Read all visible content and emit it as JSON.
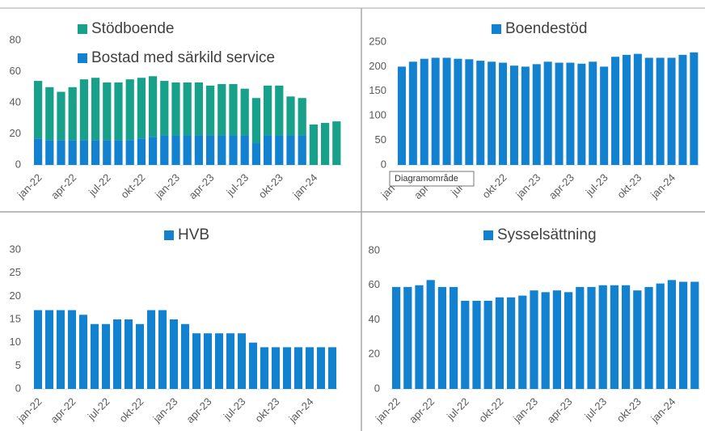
{
  "chart_data": [
    {
      "type": "bar",
      "stacked": true,
      "categories": [
        "jan-22",
        null,
        null,
        "apr-22",
        null,
        null,
        "jul-22",
        null,
        null,
        "okt-22",
        null,
        null,
        "jan-23",
        null,
        null,
        "apr-23",
        null,
        null,
        "jul-23",
        null,
        null,
        "okt-23",
        null,
        null,
        "jan-24",
        null,
        null
      ],
      "series": [
        {
          "name": "Bostad med särkild service",
          "color": "#1181d0",
          "values": [
            17,
            16,
            16,
            16,
            16,
            16,
            16,
            16,
            16,
            17,
            18,
            19,
            19,
            19,
            19,
            19,
            19,
            19,
            19,
            14,
            19,
            19,
            19,
            19,
            null,
            null,
            null
          ]
        },
        {
          "name": "Stödboende",
          "color": "#17a18a",
          "values": [
            37,
            34,
            31,
            34,
            39,
            40,
            37,
            37,
            39,
            39,
            39,
            35,
            34,
            34,
            34,
            32,
            33,
            33,
            30,
            29,
            32,
            32,
            25,
            24,
            26,
            27,
            28
          ]
        }
      ],
      "ylim": [
        0,
        80
      ],
      "yticks": [
        0,
        20,
        40,
        60,
        80
      ]
    },
    {
      "type": "bar",
      "tooltip": "Diagramområde",
      "categories": [
        "jan-22",
        null,
        null,
        "apr-22",
        null,
        null,
        "jul-22",
        null,
        null,
        "okt-22",
        null,
        null,
        "jan-23",
        null,
        null,
        "apr-23",
        null,
        null,
        "jul-23",
        null,
        null,
        "okt-23",
        null,
        null,
        "jan-24",
        null,
        null
      ],
      "series": [
        {
          "name": "Boendestöd",
          "color": "#1181d0",
          "values": [
            200,
            210,
            216,
            218,
            218,
            216,
            215,
            212,
            210,
            208,
            202,
            200,
            205,
            210,
            208,
            208,
            206,
            210,
            200,
            220,
            224,
            226,
            218,
            218,
            218,
            224,
            229
          ]
        }
      ],
      "ylim": [
        0,
        250
      ],
      "yticks": [
        0,
        50,
        100,
        150,
        200,
        250
      ]
    },
    {
      "type": "bar",
      "categories": [
        "jan-22",
        null,
        null,
        "apr-22",
        null,
        null,
        "jul-22",
        null,
        null,
        "okt-22",
        null,
        null,
        "jan-23",
        null,
        null,
        "apr-23",
        null,
        null,
        "jul-23",
        null,
        null,
        "okt-23",
        null,
        null,
        "jan-24",
        null,
        null
      ],
      "series": [
        {
          "name": "HVB",
          "color": "#1181d0",
          "values": [
            17,
            17,
            17,
            17,
            16,
            14,
            14,
            15,
            15,
            14,
            17,
            17,
            15,
            14,
            12,
            12,
            12,
            12,
            12,
            10,
            9,
            9,
            9,
            9,
            9,
            9,
            9
          ]
        }
      ],
      "ylim": [
        0,
        30
      ],
      "yticks": [
        0,
        5,
        10,
        15,
        20,
        25,
        30
      ]
    },
    {
      "type": "bar",
      "categories": [
        "jan-22",
        null,
        null,
        "apr-22",
        null,
        null,
        "jul-22",
        null,
        null,
        "okt-22",
        null,
        null,
        "jan-23",
        null,
        null,
        "apr-23",
        null,
        null,
        "jul-23",
        null,
        null,
        "okt-23",
        null,
        null,
        "jan-24",
        null,
        null
      ],
      "series": [
        {
          "name": "Sysselsättning",
          "color": "#1181d0",
          "values": [
            59,
            59,
            60,
            63,
            59,
            59,
            51,
            51,
            51,
            53,
            53,
            54,
            57,
            56,
            57,
            56,
            59,
            59,
            60,
            60,
            60,
            57,
            59,
            61,
            63,
            62,
            62
          ]
        }
      ],
      "ylim": [
        0,
        80
      ],
      "yticks": [
        0,
        20,
        40,
        60,
        80
      ]
    }
  ]
}
